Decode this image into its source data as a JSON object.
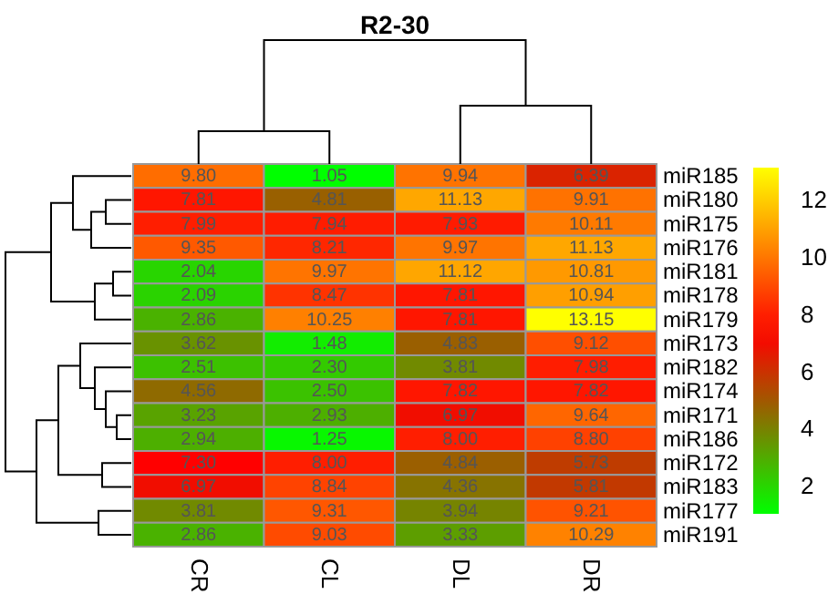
{
  "chart_data": {
    "type": "heatmap",
    "title": "R2-30",
    "categories": [
      "CR",
      "CL",
      "DL",
      "DR"
    ],
    "y_categories": [
      "miR185",
      "miR180",
      "miR175",
      "miR176",
      "miR181",
      "miR178",
      "miR179",
      "miR173",
      "miR182",
      "miR174",
      "miR171",
      "miR186",
      "miR172",
      "miR183",
      "miR177",
      "miR191"
    ],
    "cells": [
      [
        9.8,
        1.05,
        9.94,
        6.39
      ],
      [
        7.81,
        4.81,
        11.13,
        9.91
      ],
      [
        7.99,
        7.94,
        7.93,
        10.11
      ],
      [
        9.35,
        8.21,
        9.97,
        11.13
      ],
      [
        2.04,
        9.97,
        11.12,
        10.81
      ],
      [
        2.09,
        8.47,
        7.81,
        10.94
      ],
      [
        2.86,
        10.25,
        7.81,
        13.15
      ],
      [
        3.62,
        1.48,
        4.83,
        9.12
      ],
      [
        2.51,
        2.3,
        3.81,
        7.98
      ],
      [
        4.56,
        2.5,
        7.82,
        7.82
      ],
      [
        3.23,
        2.93,
        6.97,
        9.64
      ],
      [
        2.94,
        1.25,
        8.0,
        8.8
      ],
      [
        7.3,
        8.0,
        4.84,
        5.73
      ],
      [
        6.97,
        8.84,
        4.36,
        5.81
      ],
      [
        3.81,
        9.31,
        3.94,
        9.21
      ],
      [
        2.86,
        9.03,
        3.33,
        10.29
      ]
    ],
    "cell_labels": [
      [
        "9.80",
        "1.05",
        "9.94",
        "6.39"
      ],
      [
        "7.81",
        "4.81",
        "11.13",
        "9.91"
      ],
      [
        "7.99",
        "7.94",
        "7.93",
        "10.11"
      ],
      [
        "9.35",
        "8.21",
        "9.97",
        "11.13"
      ],
      [
        "2.04",
        "9.97",
        "11.12",
        "10.81"
      ],
      [
        "2.09",
        "8.47",
        "7.81",
        "10.94"
      ],
      [
        "2.86",
        "10.25",
        "7.81",
        "13.15"
      ],
      [
        "3.62",
        "1.48",
        "4.83",
        "9.12"
      ],
      [
        "2.51",
        "2.30",
        "3.81",
        "7.98"
      ],
      [
        "4.56",
        "2.50",
        "7.82",
        "7.82"
      ],
      [
        "3.23",
        "2.93",
        "6.97",
        "9.64"
      ],
      [
        "2.94",
        "1.25",
        "8.00",
        "8.80"
      ],
      [
        "7.30",
        "8.00",
        "4.84",
        "5.73"
      ],
      [
        "6.97",
        "8.84",
        "4.36",
        "5.81"
      ],
      [
        "3.81",
        "9.31",
        "3.94",
        "9.21"
      ],
      [
        "2.86",
        "9.03",
        "3.33",
        "10.29"
      ]
    ],
    "clim": [
      1.05,
      13.15
    ],
    "cticks": [
      2,
      4,
      6,
      8,
      10,
      12
    ]
  }
}
